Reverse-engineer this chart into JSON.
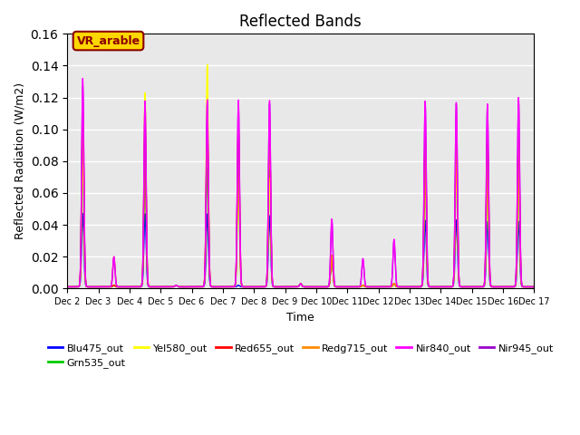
{
  "title": "Reflected Bands",
  "xlabel": "Time",
  "ylabel": "Reflected Radiation (W/m2)",
  "ylim": [
    0,
    0.16
  ],
  "annotation_text": "VR_arable",
  "annotation_color": "#8B0000",
  "annotation_box_color": "#FFD700",
  "series": {
    "Blu475_out": {
      "color": "#0000FF"
    },
    "Grn535_out": {
      "color": "#00CC00"
    },
    "Yel580_out": {
      "color": "#FFFF00"
    },
    "Red655_out": {
      "color": "#FF0000"
    },
    "Redg715_out": {
      "color": "#FF8C00"
    },
    "Nir840_out": {
      "color": "#FF00FF"
    },
    "Nir945_out": {
      "color": "#9900CC"
    }
  },
  "xticklabels": [
    "Dec 2",
    "Dec 3",
    "Dec 4",
    "Dec 5",
    "Dec 6",
    "Dec 7",
    "Dec 8",
    "Dec 9",
    "Dec 10",
    "Dec 11",
    "Dec 12",
    "Dec 13",
    "Dec 14",
    "Dec 15",
    "Dec 16",
    "Dec 17"
  ],
  "background_color": "#E8E8E8",
  "grid_color": "white",
  "blu_peaks": [
    0.046,
    0.001,
    0.046,
    0.001,
    0.046,
    0.001,
    0.045,
    0.002,
    0.02,
    0.001,
    0.002,
    0.042,
    0.042,
    0.041,
    0.041
  ],
  "grn_peaks": [
    0.078,
    0.001,
    0.076,
    0.001,
    0.075,
    0.074,
    0.074,
    0.002,
    0.02,
    0.001,
    0.002,
    0.072,
    0.074,
    0.068,
    0.068
  ],
  "yel_peaks": [
    0.079,
    0.001,
    0.122,
    0.001,
    0.14,
    0.07,
    0.069,
    0.002,
    0.02,
    0.001,
    0.002,
    0.075,
    0.073,
    0.069,
    0.069
  ],
  "red_peaks": [
    0.11,
    0.001,
    0.1,
    0.001,
    0.104,
    0.102,
    0.1,
    0.002,
    0.02,
    0.001,
    0.002,
    0.093,
    0.093,
    0.093,
    0.093
  ],
  "rdg_peaks": [
    0.11,
    0.019,
    0.101,
    0.001,
    0.104,
    0.102,
    0.1,
    0.002,
    0.02,
    0.001,
    0.002,
    0.093,
    0.093,
    0.093,
    0.093
  ],
  "nir840_peaks": [
    0.131,
    0.019,
    0.117,
    0.001,
    0.118,
    0.118,
    0.118,
    0.002,
    0.043,
    0.018,
    0.03,
    0.117,
    0.116,
    0.115,
    0.119
  ],
  "nir945_peaks": [
    0.126,
    0.018,
    0.115,
    0.001,
    0.116,
    0.115,
    0.116,
    0.002,
    0.042,
    0.017,
    0.029,
    0.115,
    0.115,
    0.114,
    0.118
  ]
}
